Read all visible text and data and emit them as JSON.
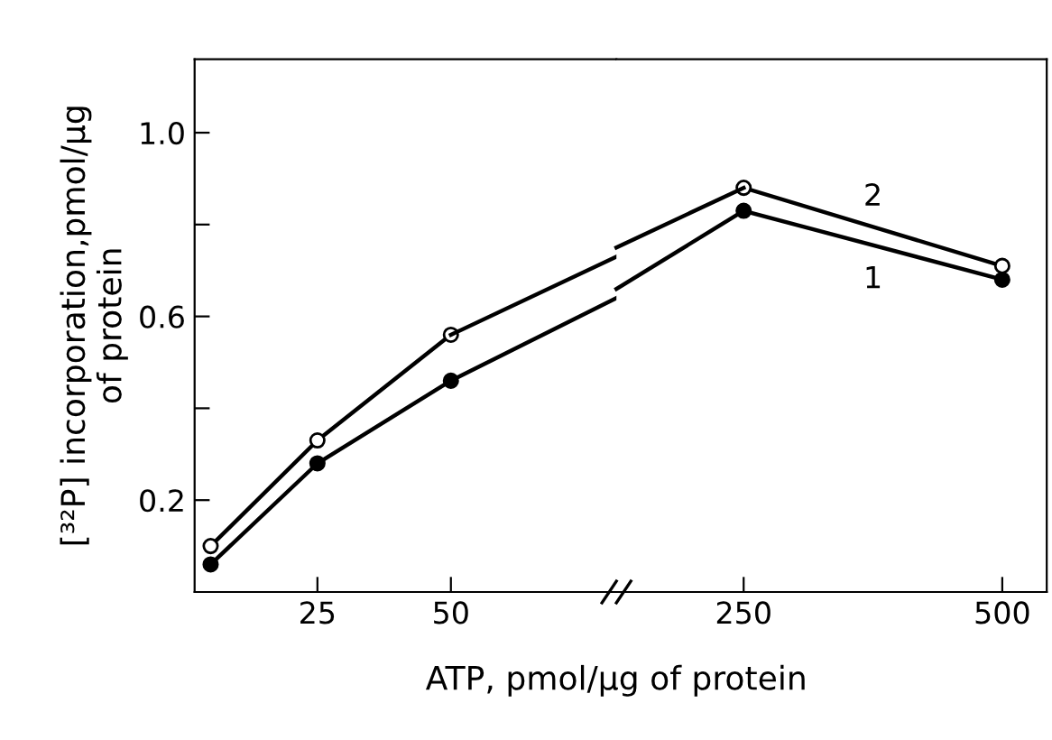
{
  "chart_data": [
    {
      "type": "line",
      "ylabel": "[³²P] incorporation,pmol/μg\nof protein",
      "x": [
        5,
        25,
        50
      ],
      "series": [
        {
          "color": "#000000",
          "values": [
            0.1,
            0.33,
            0.56
          ]
        },
        {
          "color": "#000000",
          "values": [
            0.06,
            0.28,
            0.46
          ]
        },
        {
          "color": "#000000",
          "x": [
            50,
            81
          ],
          "values": [
            0.56,
            0.73
          ],
          "marker": "none"
        },
        {
          "color": "#000000",
          "x": [
            50,
            81
          ],
          "values": [
            0.46,
            0.64
          ],
          "marker": "none"
        }
      ],
      "xlim": [
        2,
        81
      ],
      "xticks": [
        25,
        50
      ],
      "ylim": [
        0,
        1.16
      ],
      "yticks": [
        0.2,
        {
          "value": 0.4,
          "label": null
        },
        0.6,
        {
          "value": 0.8,
          "label": null
        },
        {
          "value": 1.0,
          "label": "1.0"
        }
      ],
      "marker": "circle",
      "line_style": "solid",
      "grid": false,
      "legend": false
    },
    {
      "type": "line",
      "xlabel": "ATP, pmol/μg of protein",
      "x": [
        250,
        500
      ],
      "series": [
        {
          "name": "2",
          "color": "#000000",
          "values": [
            0.88,
            0.71
          ]
        },
        {
          "name": "1",
          "color": "#000000",
          "values": [
            0.83,
            0.68
          ]
        },
        {
          "color": "#000000",
          "x": [
            127,
            250
          ],
          "values": [
            0.75,
            0.88
          ],
          "marker": "none"
        },
        {
          "color": "#000000",
          "x": [
            127,
            250
          ],
          "values": [
            0.66,
            0.83
          ],
          "marker": "none"
        }
      ],
      "xlim": [
        127,
        543
      ],
      "xticks": [
        250,
        500
      ],
      "ylim": [
        0,
        1.16
      ],
      "tick_labels": "x",
      "marker": "circle",
      "line_style": "solid",
      "grid": false,
      "legend": false
    }
  ]
}
